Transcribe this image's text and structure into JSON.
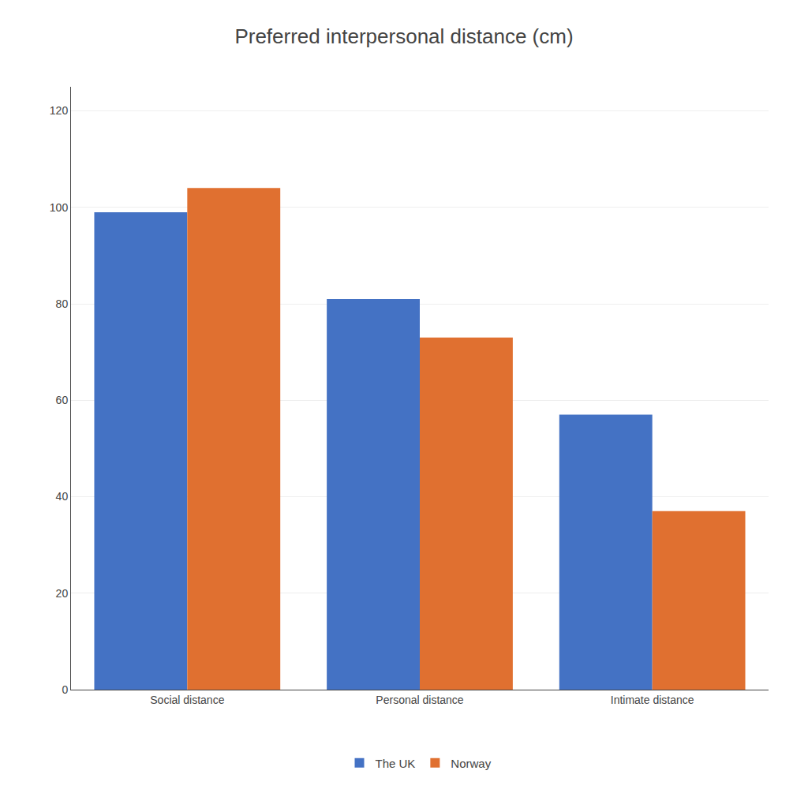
{
  "chart_data": {
    "type": "bar",
    "title": "Preferred interpersonal distance (cm)",
    "categories": [
      "Social distance",
      "Personal distance",
      "Intimate distance"
    ],
    "series": [
      {
        "name": "The UK",
        "color": "#4472C4",
        "values": [
          99,
          81,
          57
        ]
      },
      {
        "name": "Norway",
        "color": "#E07030",
        "values": [
          104,
          73,
          37
        ]
      }
    ],
    "ylim": [
      0,
      125
    ],
    "yticks": [
      0,
      20,
      40,
      60,
      80,
      100,
      120
    ],
    "grid": true,
    "legend": "bottom"
  }
}
